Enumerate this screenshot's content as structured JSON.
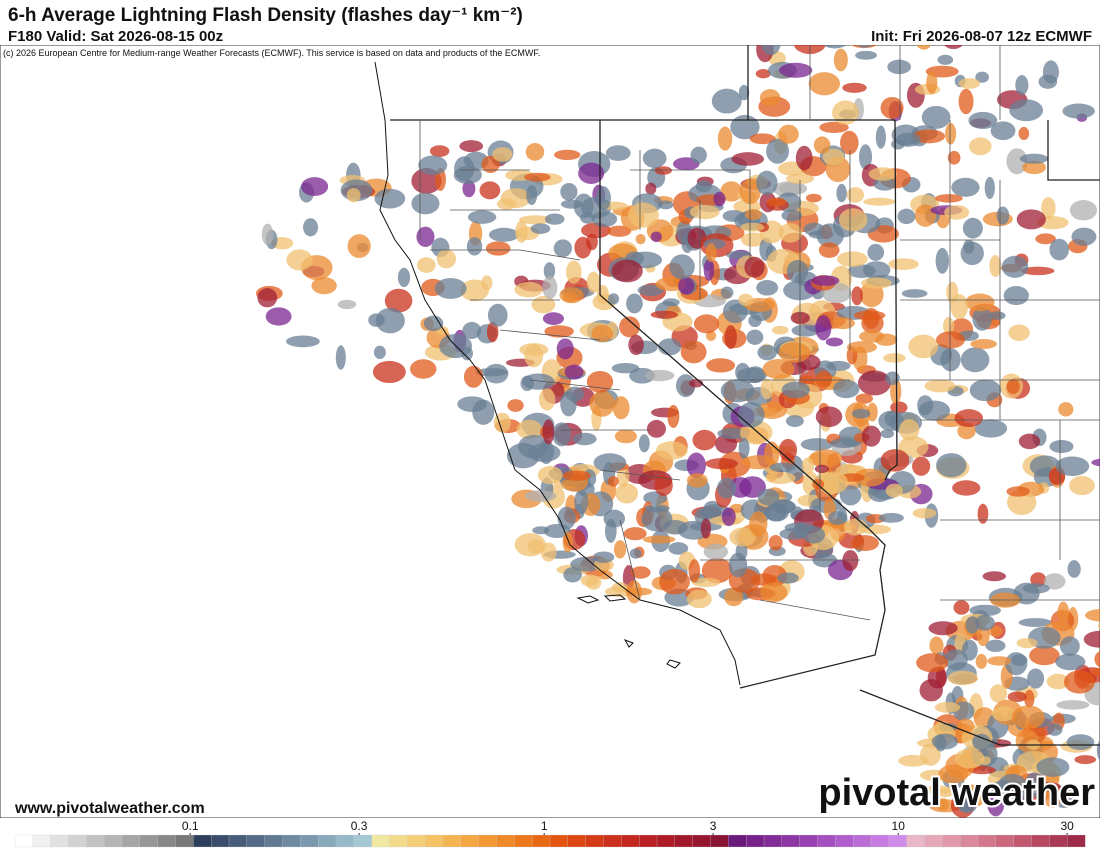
{
  "header": {
    "title": "6-h Average Lightning Flash Density (flashes day⁻¹ km⁻²)",
    "valid": "F180 Valid: Sat 2026-08-15 00z",
    "init": "Init: Fri 2026-08-07 12z ECMWF",
    "copyright": "(c) 2026 European Centre for Medium-range Weather Forecasts (ECMWF). This service is based on data and products of the ECMWF."
  },
  "footer": {
    "website": "www.pivotalweather.com",
    "logo": "pivotal weather"
  },
  "colorbar": {
    "scale": "log",
    "lim": [
      0.032,
      33.7
    ],
    "ticks": [
      0.1,
      0.3,
      1,
      3,
      10,
      30
    ],
    "colors": [
      "#ffffff",
      "#f0f0f0",
      "#e1e1e1",
      "#d2d2d2",
      "#c3c3c3",
      "#b4b4b4",
      "#a5a5a5",
      "#969696",
      "#878787",
      "#787878",
      "#2e3f5e",
      "#3a4d6b",
      "#465c79",
      "#536b87",
      "#607a94",
      "#6d8aa1",
      "#7a99ae",
      "#88a9bb",
      "#96b8c8",
      "#a4c8d4",
      "#f0e8a0",
      "#f2dc8c",
      "#f4cf78",
      "#f5c265",
      "#f5b452",
      "#f4a642",
      "#f29733",
      "#ef8826",
      "#ec781b",
      "#e86713",
      "#e35510",
      "#dc4612",
      "#d43a16",
      "#cc2f1b",
      "#c3271f",
      "#b92023",
      "#ae1b27",
      "#a2182b",
      "#95162f",
      "#881533",
      "#6a1a7a",
      "#76228a",
      "#822c98",
      "#8d37a5",
      "#9943b2",
      "#a450bf",
      "#b05ecb",
      "#bb6dd6",
      "#c67ce0",
      "#d08cea",
      "#e9b8c8",
      "#e5a8b9",
      "#e098aa",
      "#da889b",
      "#d3788c",
      "#cb687e",
      "#c25870",
      "#b74862",
      "#aa3955",
      "#9c2a48"
    ]
  }
}
